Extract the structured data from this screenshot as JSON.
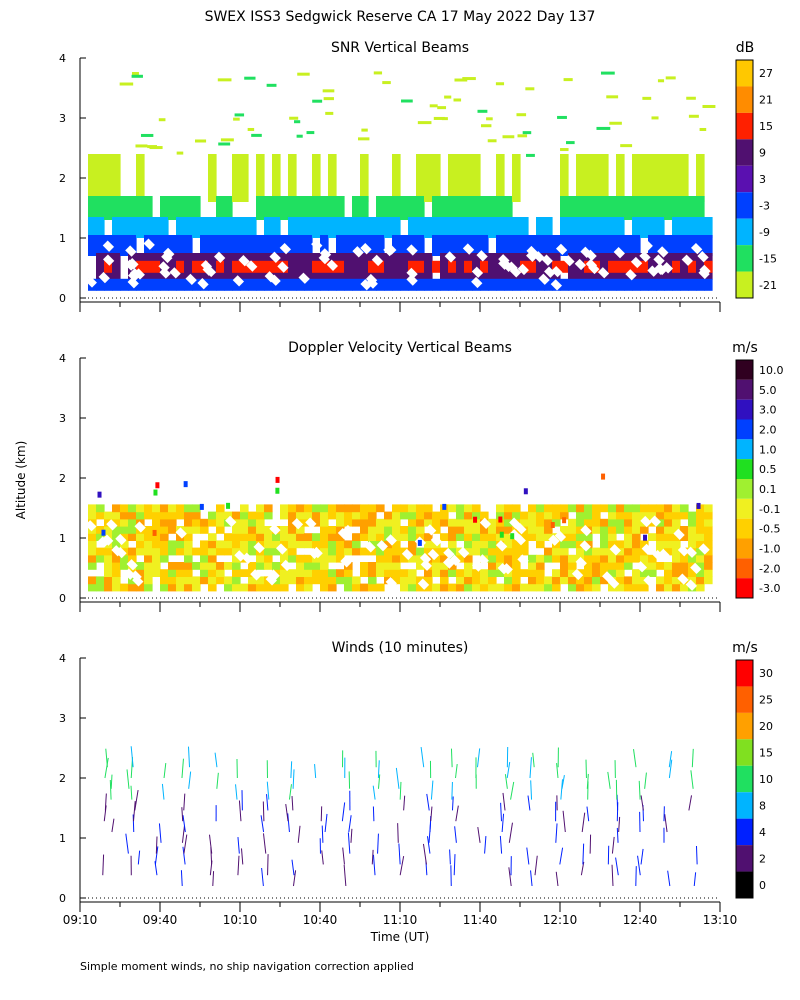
{
  "header": {
    "title": "SWEX ISS3 Sedgwick Reserve CA  17 May 2022 Day 137"
  },
  "footer": {
    "note": "Simple moment winds, no ship navigation correction applied"
  },
  "chart_data": [
    {
      "type": "heatmap",
      "title": "SNR Vertical Beams",
      "xlabel": "",
      "ylabel": "",
      "x_ticks": [],
      "y_ticks": [
        "0",
        "1",
        "2",
        "3",
        "4"
      ],
      "ylim": [
        0,
        4
      ],
      "xlim": [
        "09:10",
        "13:10"
      ],
      "colorbar": {
        "unit": "dB",
        "labels": [
          "27",
          "21",
          "15",
          "9",
          "3",
          "-3",
          "-9",
          "-15",
          "-21"
        ],
        "colors": [
          "#ffc800",
          "#ff8c00",
          "#ff2000",
          "#501070",
          "#5a10b0",
          "#0040ff",
          "#00b4ff",
          "#20e060",
          "#c8f020"
        ]
      },
      "profile": {
        "description_rows": [
          {
            "altitude_km": [
              0.1,
              0.3
            ],
            "color": "#0040ff"
          },
          {
            "altitude_km": [
              0.3,
              0.7
            ],
            "color": "#501070"
          },
          {
            "altitude_km": [
              0.4,
              0.6
            ],
            "color": "#ff2000"
          },
          {
            "altitude_km": [
              0.7,
              1.0
            ],
            "color": "#0040ff"
          },
          {
            "altitude_km": [
              1.0,
              1.3
            ],
            "color": "#00b4ff"
          },
          {
            "altitude_km": [
              1.3,
              1.6
            ],
            "color": "#20e060"
          },
          {
            "altitude_km": [
              1.6,
              2.4
            ],
            "color": "#c8f020"
          }
        ]
      }
    },
    {
      "type": "heatmap",
      "title": "Doppler Velocity Vertical Beams",
      "xlabel": "",
      "ylabel": "Altitude (km)",
      "x_ticks": [],
      "y_ticks": [
        "0",
        "1",
        "2",
        "3",
        "4"
      ],
      "ylim": [
        0,
        4
      ],
      "xlim": [
        "09:10",
        "13:10"
      ],
      "colorbar": {
        "unit": "m/s",
        "labels": [
          "10.0",
          "5.0",
          "3.0",
          "2.0",
          "1.0",
          "0.5",
          "0.1",
          "-0.1",
          "-0.5",
          "-1.0",
          "-2.0",
          "-3.0"
        ],
        "colors": [
          "#300020",
          "#501070",
          "#3010c0",
          "#0040ff",
          "#00b4ff",
          "#20e020",
          "#a0f030",
          "#f0f020",
          "#ffd000",
          "#ffa000",
          "#ff6000",
          "#ff0000"
        ]
      }
    },
    {
      "type": "scatter",
      "title": "Winds (10 minutes)",
      "xlabel": "Time (UT)",
      "ylabel": "",
      "x_ticks": [
        "09:10",
        "09:40",
        "10:10",
        "10:40",
        "11:10",
        "11:40",
        "12:10",
        "12:40",
        "13:10"
      ],
      "y_ticks": [
        "0",
        "1",
        "2",
        "3",
        "4"
      ],
      "ylim": [
        0,
        4
      ],
      "xlim": [
        "09:10",
        "13:10"
      ],
      "colorbar": {
        "unit": "m/s",
        "labels": [
          "30",
          "25",
          "20",
          "15",
          "10",
          "8",
          "4",
          "2",
          "0"
        ],
        "colors": [
          "#ff0000",
          "#ff6000",
          "#ffa000",
          "#80e020",
          "#20e060",
          "#00b4ff",
          "#0020ff",
          "#501070",
          "#000000"
        ]
      }
    }
  ]
}
